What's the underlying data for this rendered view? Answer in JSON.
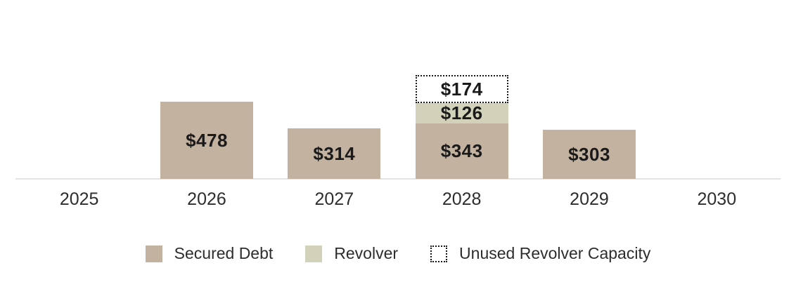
{
  "chart_data": {
    "type": "bar",
    "stacked": true,
    "title": "",
    "xlabel": "",
    "ylabel": "",
    "grid": false,
    "legend_position": "bottom",
    "value_prefix": "$",
    "ylim": [
      0,
      520
    ],
    "categories": [
      "2025",
      "2026",
      "2027",
      "2028",
      "2029",
      "2030"
    ],
    "series": [
      {
        "name": "Secured Debt",
        "key": "secured-debt",
        "style": "solid",
        "color": "#c3b2a0",
        "values": [
          null,
          478,
          314,
          343,
          303,
          null
        ]
      },
      {
        "name": "Revolver",
        "key": "revolver",
        "style": "solid",
        "color": "#d2d1b9",
        "values": [
          null,
          null,
          null,
          126,
          null,
          null
        ]
      },
      {
        "name": "Unused Revolver Capacity",
        "key": "unused-revolver-capacity",
        "style": "dotted-outline",
        "color": "#ffffff",
        "border_color": "#1a1a1a",
        "values": [
          null,
          null,
          null,
          174,
          null,
          null
        ]
      }
    ],
    "visible_value_labels": [
      "$478",
      "$314",
      "$343",
      "$126",
      "$174",
      "$303"
    ]
  },
  "legend": {
    "items": [
      {
        "label": "Secured Debt",
        "swatch": "solid",
        "color": "#c3b2a0"
      },
      {
        "label": "Revolver",
        "swatch": "solid",
        "color": "#d2d1b9"
      },
      {
        "label": "Unused Revolver Capacity",
        "swatch": "dotted-outline",
        "color": "#ffffff"
      }
    ]
  },
  "colors": {
    "background": "#ffffff",
    "axis_line": "#e5e3e0",
    "value_text": "#1a1a1a",
    "axis_label_text": "#2d2d2d"
  }
}
